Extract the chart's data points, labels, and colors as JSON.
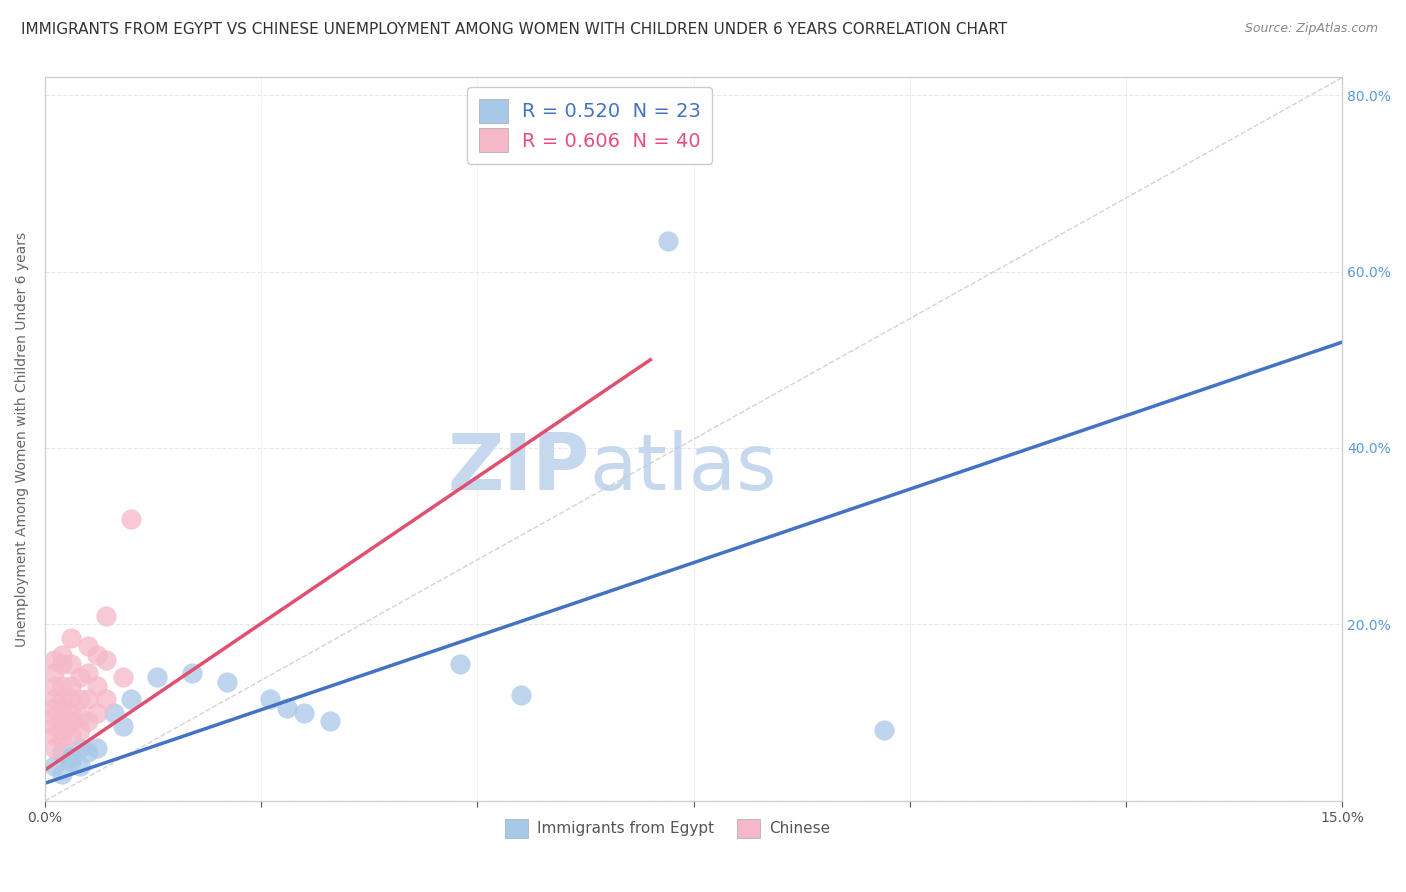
{
  "title": "IMMIGRANTS FROM EGYPT VS CHINESE UNEMPLOYMENT AMONG WOMEN WITH CHILDREN UNDER 6 YEARS CORRELATION CHART",
  "source": "Source: ZipAtlas.com",
  "ylabel": "Unemployment Among Women with Children Under 6 years",
  "legend_bottom": [
    "Immigrants from Egypt",
    "Chinese"
  ],
  "legend_top_entries": [
    {
      "label": "R = 0.520  N = 23",
      "color": "#aec6e8"
    },
    {
      "label": "R = 0.606  N = 40",
      "color": "#f4b8c1"
    }
  ],
  "xlim": [
    0.0,
    0.15
  ],
  "ylim": [
    0.0,
    0.82
  ],
  "egypt_scatter": [
    [
      0.001,
      0.04
    ],
    [
      0.002,
      0.03
    ],
    [
      0.002,
      0.055
    ],
    [
      0.003,
      0.045
    ],
    [
      0.003,
      0.05
    ],
    [
      0.004,
      0.04
    ],
    [
      0.004,
      0.06
    ],
    [
      0.005,
      0.055
    ],
    [
      0.006,
      0.06
    ],
    [
      0.008,
      0.1
    ],
    [
      0.009,
      0.085
    ],
    [
      0.01,
      0.115
    ],
    [
      0.013,
      0.14
    ],
    [
      0.017,
      0.145
    ],
    [
      0.021,
      0.135
    ],
    [
      0.026,
      0.115
    ],
    [
      0.028,
      0.105
    ],
    [
      0.03,
      0.1
    ],
    [
      0.033,
      0.09
    ],
    [
      0.048,
      0.155
    ],
    [
      0.055,
      0.12
    ],
    [
      0.072,
      0.635
    ],
    [
      0.097,
      0.08
    ]
  ],
  "chinese_scatter": [
    [
      0.001,
      0.06
    ],
    [
      0.001,
      0.075
    ],
    [
      0.001,
      0.085
    ],
    [
      0.001,
      0.095
    ],
    [
      0.001,
      0.105
    ],
    [
      0.001,
      0.115
    ],
    [
      0.001,
      0.13
    ],
    [
      0.001,
      0.145
    ],
    [
      0.001,
      0.16
    ],
    [
      0.002,
      0.07
    ],
    [
      0.002,
      0.08
    ],
    [
      0.002,
      0.09
    ],
    [
      0.002,
      0.105
    ],
    [
      0.002,
      0.115
    ],
    [
      0.002,
      0.13
    ],
    [
      0.002,
      0.155
    ],
    [
      0.002,
      0.165
    ],
    [
      0.003,
      0.075
    ],
    [
      0.003,
      0.09
    ],
    [
      0.003,
      0.1
    ],
    [
      0.003,
      0.115
    ],
    [
      0.003,
      0.13
    ],
    [
      0.003,
      0.155
    ],
    [
      0.003,
      0.185
    ],
    [
      0.004,
      0.08
    ],
    [
      0.004,
      0.095
    ],
    [
      0.004,
      0.115
    ],
    [
      0.004,
      0.14
    ],
    [
      0.005,
      0.09
    ],
    [
      0.005,
      0.115
    ],
    [
      0.005,
      0.145
    ],
    [
      0.005,
      0.175
    ],
    [
      0.006,
      0.1
    ],
    [
      0.006,
      0.13
    ],
    [
      0.006,
      0.165
    ],
    [
      0.007,
      0.115
    ],
    [
      0.007,
      0.16
    ],
    [
      0.007,
      0.21
    ],
    [
      0.009,
      0.14
    ],
    [
      0.01,
      0.32
    ]
  ],
  "egypt_color": "#a8c8e8",
  "chinese_color": "#f5b8c8",
  "egypt_line_color": "#4472c4",
  "chinese_line_color": "#e05070",
  "ref_line_color": "#c8c8c8",
  "background_color": "#ffffff",
  "watermark_zip": "ZIP",
  "watermark_atlas": "atlas",
  "watermark_color": "#c5d8ee",
  "grid_color": "#e8e8e8",
  "title_fontsize": 11,
  "axis_fontsize": 10,
  "tick_fontsize": 10
}
